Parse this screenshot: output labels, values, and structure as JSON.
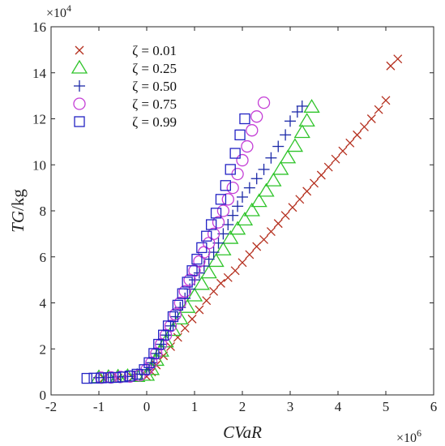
{
  "chart_data": {
    "type": "scatter",
    "title": "",
    "xlabel": "CVaR",
    "ylabel_italic": "TG",
    "ylabel_unit": "/kg",
    "x_exponent_base": "×10",
    "x_exponent_power": "6",
    "y_exponent_base": "×10",
    "y_exponent_power": "4",
    "xlim": [
      -2,
      6
    ],
    "ylim": [
      0,
      16
    ],
    "x_ticks": [
      -2,
      -1,
      0,
      1,
      2,
      3,
      4,
      5,
      6
    ],
    "y_ticks": [
      0,
      2,
      4,
      6,
      8,
      10,
      12,
      14,
      16
    ],
    "x_tick_labels": [
      "-2",
      "-1",
      "0",
      "1",
      "2",
      "3",
      "4",
      "5",
      "6"
    ],
    "y_tick_labels": [
      "0",
      "2",
      "4",
      "6",
      "8",
      "10",
      "12",
      "14",
      "16"
    ],
    "grid": false,
    "legend_position": "top-left",
    "series": [
      {
        "name": "ζ = 0.01",
        "marker": "x",
        "color": "#b5301f",
        "points": [
          [
            -0.9,
            0.72
          ],
          [
            -0.6,
            0.74
          ],
          [
            -0.3,
            0.76
          ],
          [
            0.0,
            0.8
          ],
          [
            0.1,
            1.0
          ],
          [
            0.2,
            1.3
          ],
          [
            0.35,
            1.7
          ],
          [
            0.5,
            2.1
          ],
          [
            0.65,
            2.5
          ],
          [
            0.8,
            2.9
          ],
          [
            0.95,
            3.3
          ],
          [
            1.1,
            3.7
          ],
          [
            1.25,
            4.1
          ],
          [
            1.4,
            4.5
          ],
          [
            1.55,
            4.85
          ],
          [
            1.7,
            5.1
          ],
          [
            1.85,
            5.4
          ],
          [
            2.0,
            5.75
          ],
          [
            2.15,
            6.1
          ],
          [
            2.3,
            6.45
          ],
          [
            2.45,
            6.75
          ],
          [
            2.6,
            7.1
          ],
          [
            2.75,
            7.45
          ],
          [
            2.9,
            7.8
          ],
          [
            3.05,
            8.15
          ],
          [
            3.2,
            8.5
          ],
          [
            3.35,
            8.85
          ],
          [
            3.5,
            9.2
          ],
          [
            3.65,
            9.55
          ],
          [
            3.8,
            9.9
          ],
          [
            3.95,
            10.25
          ],
          [
            4.1,
            10.6
          ],
          [
            4.25,
            10.95
          ],
          [
            4.4,
            11.3
          ],
          [
            4.55,
            11.65
          ],
          [
            4.7,
            12.0
          ],
          [
            4.85,
            12.4
          ],
          [
            5.0,
            12.8
          ],
          [
            5.1,
            14.3
          ],
          [
            5.25,
            14.6
          ]
        ]
      },
      {
        "name": "ζ = 0.25",
        "marker": "triangle",
        "color": "#2fc42a",
        "points": [
          [
            -1.0,
            0.75
          ],
          [
            -0.8,
            0.76
          ],
          [
            -0.6,
            0.78
          ],
          [
            -0.4,
            0.8
          ],
          [
            -0.2,
            0.8
          ],
          [
            0.0,
            0.85
          ],
          [
            0.1,
            1.1
          ],
          [
            0.2,
            1.5
          ],
          [
            0.3,
            1.9
          ],
          [
            0.4,
            2.3
          ],
          [
            0.55,
            2.8
          ],
          [
            0.7,
            3.3
          ],
          [
            0.85,
            3.8
          ],
          [
            1.0,
            4.3
          ],
          [
            1.15,
            4.8
          ],
          [
            1.3,
            5.3
          ],
          [
            1.45,
            5.8
          ],
          [
            1.6,
            6.3
          ],
          [
            1.75,
            6.8
          ],
          [
            1.9,
            7.2
          ],
          [
            2.05,
            7.6
          ],
          [
            2.2,
            8.0
          ],
          [
            2.35,
            8.4
          ],
          [
            2.5,
            8.85
          ],
          [
            2.65,
            9.3
          ],
          [
            2.8,
            9.8
          ],
          [
            2.95,
            10.3
          ],
          [
            3.1,
            10.8
          ],
          [
            3.25,
            11.4
          ],
          [
            3.35,
            11.9
          ],
          [
            3.45,
            12.5
          ]
        ]
      },
      {
        "name": "ζ = 0.50",
        "marker": "plus",
        "color": "#1c2aa8",
        "points": [
          [
            -1.0,
            0.75
          ],
          [
            -0.8,
            0.76
          ],
          [
            -0.6,
            0.78
          ],
          [
            -0.4,
            0.8
          ],
          [
            -0.2,
            0.9
          ],
          [
            0.0,
            1.1
          ],
          [
            0.1,
            1.4
          ],
          [
            0.2,
            1.8
          ],
          [
            0.3,
            2.2
          ],
          [
            0.4,
            2.6
          ],
          [
            0.5,
            3.0
          ],
          [
            0.6,
            3.4
          ],
          [
            0.7,
            3.8
          ],
          [
            0.8,
            4.2
          ],
          [
            0.9,
            4.6
          ],
          [
            1.0,
            5.0
          ],
          [
            1.1,
            5.3
          ],
          [
            1.2,
            5.6
          ],
          [
            1.3,
            5.9
          ],
          [
            1.4,
            6.2
          ],
          [
            1.5,
            6.6
          ],
          [
            1.6,
            7.0
          ],
          [
            1.7,
            7.4
          ],
          [
            1.8,
            7.8
          ],
          [
            1.9,
            8.2
          ],
          [
            2.0,
            8.6
          ],
          [
            2.15,
            9.0
          ],
          [
            2.3,
            9.4
          ],
          [
            2.45,
            9.8
          ],
          [
            2.6,
            10.3
          ],
          [
            2.75,
            10.8
          ],
          [
            2.9,
            11.3
          ],
          [
            3.0,
            11.9
          ],
          [
            3.15,
            12.3
          ],
          [
            3.25,
            12.55
          ]
        ]
      },
      {
        "name": "ζ = 0.75",
        "marker": "circle",
        "color": "#c43ed6",
        "points": [
          [
            -0.95,
            0.75
          ],
          [
            -0.75,
            0.76
          ],
          [
            -0.55,
            0.78
          ],
          [
            -0.35,
            0.8
          ],
          [
            -0.15,
            0.85
          ],
          [
            0.0,
            1.1
          ],
          [
            0.1,
            1.4
          ],
          [
            0.2,
            1.8
          ],
          [
            0.3,
            2.2
          ],
          [
            0.4,
            2.6
          ],
          [
            0.5,
            3.0
          ],
          [
            0.6,
            3.5
          ],
          [
            0.7,
            4.0
          ],
          [
            0.8,
            4.5
          ],
          [
            0.9,
            5.0
          ],
          [
            1.0,
            5.4
          ],
          [
            1.1,
            5.8
          ],
          [
            1.2,
            6.2
          ],
          [
            1.3,
            6.6
          ],
          [
            1.4,
            7.0
          ],
          [
            1.5,
            7.5
          ],
          [
            1.6,
            8.0
          ],
          [
            1.7,
            8.5
          ],
          [
            1.8,
            9.0
          ],
          [
            1.9,
            9.6
          ],
          [
            2.0,
            10.2
          ],
          [
            2.1,
            10.8
          ],
          [
            2.2,
            11.5
          ],
          [
            2.3,
            12.1
          ],
          [
            2.45,
            12.7
          ]
        ]
      },
      {
        "name": "ζ = 0.99",
        "marker": "square",
        "color": "#2222c4",
        "points": [
          [
            -1.25,
            0.72
          ],
          [
            -1.1,
            0.73
          ],
          [
            -0.95,
            0.74
          ],
          [
            -0.8,
            0.75
          ],
          [
            -0.65,
            0.76
          ],
          [
            -0.5,
            0.78
          ],
          [
            -0.35,
            0.82
          ],
          [
            -0.2,
            0.9
          ],
          [
            -0.05,
            1.1
          ],
          [
            0.05,
            1.4
          ],
          [
            0.15,
            1.8
          ],
          [
            0.25,
            2.2
          ],
          [
            0.35,
            2.6
          ],
          [
            0.45,
            3.0
          ],
          [
            0.55,
            3.4
          ],
          [
            0.65,
            3.9
          ],
          [
            0.75,
            4.4
          ],
          [
            0.85,
            4.9
          ],
          [
            0.95,
            5.4
          ],
          [
            1.05,
            5.9
          ],
          [
            1.15,
            6.4
          ],
          [
            1.25,
            6.9
          ],
          [
            1.35,
            7.4
          ],
          [
            1.45,
            7.9
          ],
          [
            1.55,
            8.5
          ],
          [
            1.65,
            9.1
          ],
          [
            1.75,
            9.8
          ],
          [
            1.85,
            10.5
          ],
          [
            1.95,
            11.3
          ],
          [
            2.05,
            12.0
          ]
        ]
      }
    ]
  }
}
